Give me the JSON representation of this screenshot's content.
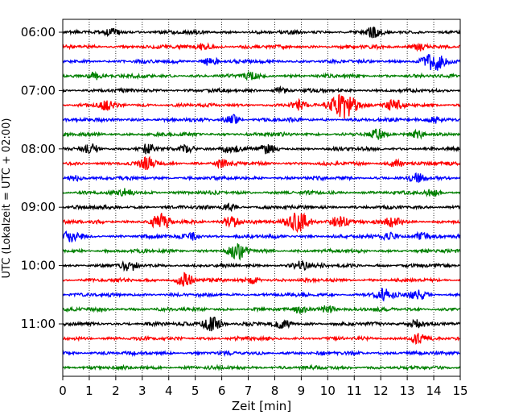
{
  "chart_data": {
    "type": "line",
    "title": "",
    "xlabel": "Zeit  [min]",
    "ylabel": "UTC (Lokalzeit = UTC + 02:00)",
    "xlim": [
      0,
      15
    ],
    "x_ticks": [
      "0",
      "1",
      "2",
      "3",
      "4",
      "5",
      "6",
      "7",
      "8",
      "9",
      "10",
      "11",
      "12",
      "13",
      "14",
      "15"
    ],
    "y_ticks": [
      "06:00",
      "07:00",
      "08:00",
      "09:00",
      "10:00",
      "11:00"
    ],
    "grid": "vertical dotted at each minute",
    "trace_interval_min": 15,
    "first_trace": "06:00",
    "trace_colors": [
      "#000000",
      "#ff0000",
      "#0000ff",
      "#008000"
    ],
    "series": [
      {
        "start": "06:00",
        "events": [
          {
            "t": 11.7,
            "amp": 1.6
          },
          {
            "t": 1.9,
            "amp": 1.2
          }
        ]
      },
      {
        "start": "06:15",
        "events": [
          {
            "t": 5.3,
            "amp": 1.3
          },
          {
            "t": 13.5,
            "amp": 1.4
          }
        ]
      },
      {
        "start": "06:30",
        "events": [
          {
            "t": 5.6,
            "amp": 1.5
          },
          {
            "t": 14.0,
            "amp": 3.2
          }
        ]
      },
      {
        "start": "06:45",
        "events": [
          {
            "t": 1.2,
            "amp": 1.3
          },
          {
            "t": 7.1,
            "amp": 1.1
          }
        ]
      },
      {
        "start": "07:00",
        "events": [
          {
            "t": 8.2,
            "amp": 1.0
          }
        ]
      },
      {
        "start": "07:15",
        "events": [
          {
            "t": 1.6,
            "amp": 1.5
          },
          {
            "t": 8.9,
            "amp": 1.5
          },
          {
            "t": 10.6,
            "amp": 4.5
          },
          {
            "t": 12.5,
            "amp": 1.8
          }
        ]
      },
      {
        "start": "07:30",
        "events": [
          {
            "t": 6.4,
            "amp": 1.5
          },
          {
            "t": 14.0,
            "amp": 1.3
          }
        ]
      },
      {
        "start": "07:45",
        "events": [
          {
            "t": 11.9,
            "amp": 1.4
          },
          {
            "t": 13.4,
            "amp": 1.3
          }
        ]
      },
      {
        "start": "08:00",
        "events": [
          {
            "t": 1.1,
            "amp": 1.6
          },
          {
            "t": 3.2,
            "amp": 1.3
          },
          {
            "t": 4.7,
            "amp": 1.4
          },
          {
            "t": 6.3,
            "amp": 1.5
          },
          {
            "t": 7.7,
            "amp": 1.3
          }
        ]
      },
      {
        "start": "08:15",
        "events": [
          {
            "t": 3.2,
            "amp": 1.8
          },
          {
            "t": 6.0,
            "amp": 1.2
          },
          {
            "t": 12.6,
            "amp": 1.3
          }
        ]
      },
      {
        "start": "08:30",
        "events": [
          {
            "t": 0.5,
            "amp": 1.2
          },
          {
            "t": 13.4,
            "amp": 1.3
          }
        ]
      },
      {
        "start": "08:45",
        "events": [
          {
            "t": 2.4,
            "amp": 1.2
          },
          {
            "t": 14.0,
            "amp": 1.3
          }
        ]
      },
      {
        "start": "09:00",
        "events": [
          {
            "t": 6.3,
            "amp": 1.2
          }
        ]
      },
      {
        "start": "09:15",
        "events": [
          {
            "t": 3.7,
            "amp": 2.6
          },
          {
            "t": 6.4,
            "amp": 2.0
          },
          {
            "t": 8.9,
            "amp": 3.2
          },
          {
            "t": 10.4,
            "amp": 2.2
          },
          {
            "t": 12.5,
            "amp": 1.8
          }
        ]
      },
      {
        "start": "09:30",
        "events": [
          {
            "t": 0.35,
            "amp": 2.0
          },
          {
            "t": 4.9,
            "amp": 1.2
          },
          {
            "t": 12.3,
            "amp": 1.3
          },
          {
            "t": 13.5,
            "amp": 1.4
          }
        ]
      },
      {
        "start": "09:45",
        "events": [
          {
            "t": 6.6,
            "amp": 2.4
          }
        ]
      },
      {
        "start": "10:00",
        "events": [
          {
            "t": 2.5,
            "amp": 1.6
          },
          {
            "t": 9.0,
            "amp": 1.6
          }
        ]
      },
      {
        "start": "10:15",
        "events": [
          {
            "t": 4.6,
            "amp": 2.2
          },
          {
            "t": 7.2,
            "amp": 1.2
          }
        ]
      },
      {
        "start": "10:30",
        "events": [
          {
            "t": 12.1,
            "amp": 2.0
          },
          {
            "t": 13.4,
            "amp": 1.8
          }
        ]
      },
      {
        "start": "10:45",
        "events": [
          {
            "t": 9.0,
            "amp": 1.3
          },
          {
            "t": 10.0,
            "amp": 1.4
          }
        ]
      },
      {
        "start": "11:00",
        "events": [
          {
            "t": 5.6,
            "amp": 2.5
          },
          {
            "t": 8.3,
            "amp": 1.5
          },
          {
            "t": 13.4,
            "amp": 1.6
          }
        ]
      },
      {
        "start": "11:15",
        "events": [
          {
            "t": 13.4,
            "amp": 1.6
          }
        ]
      },
      {
        "start": "11:30",
        "events": []
      },
      {
        "start": "11:45",
        "events": []
      }
    ]
  }
}
